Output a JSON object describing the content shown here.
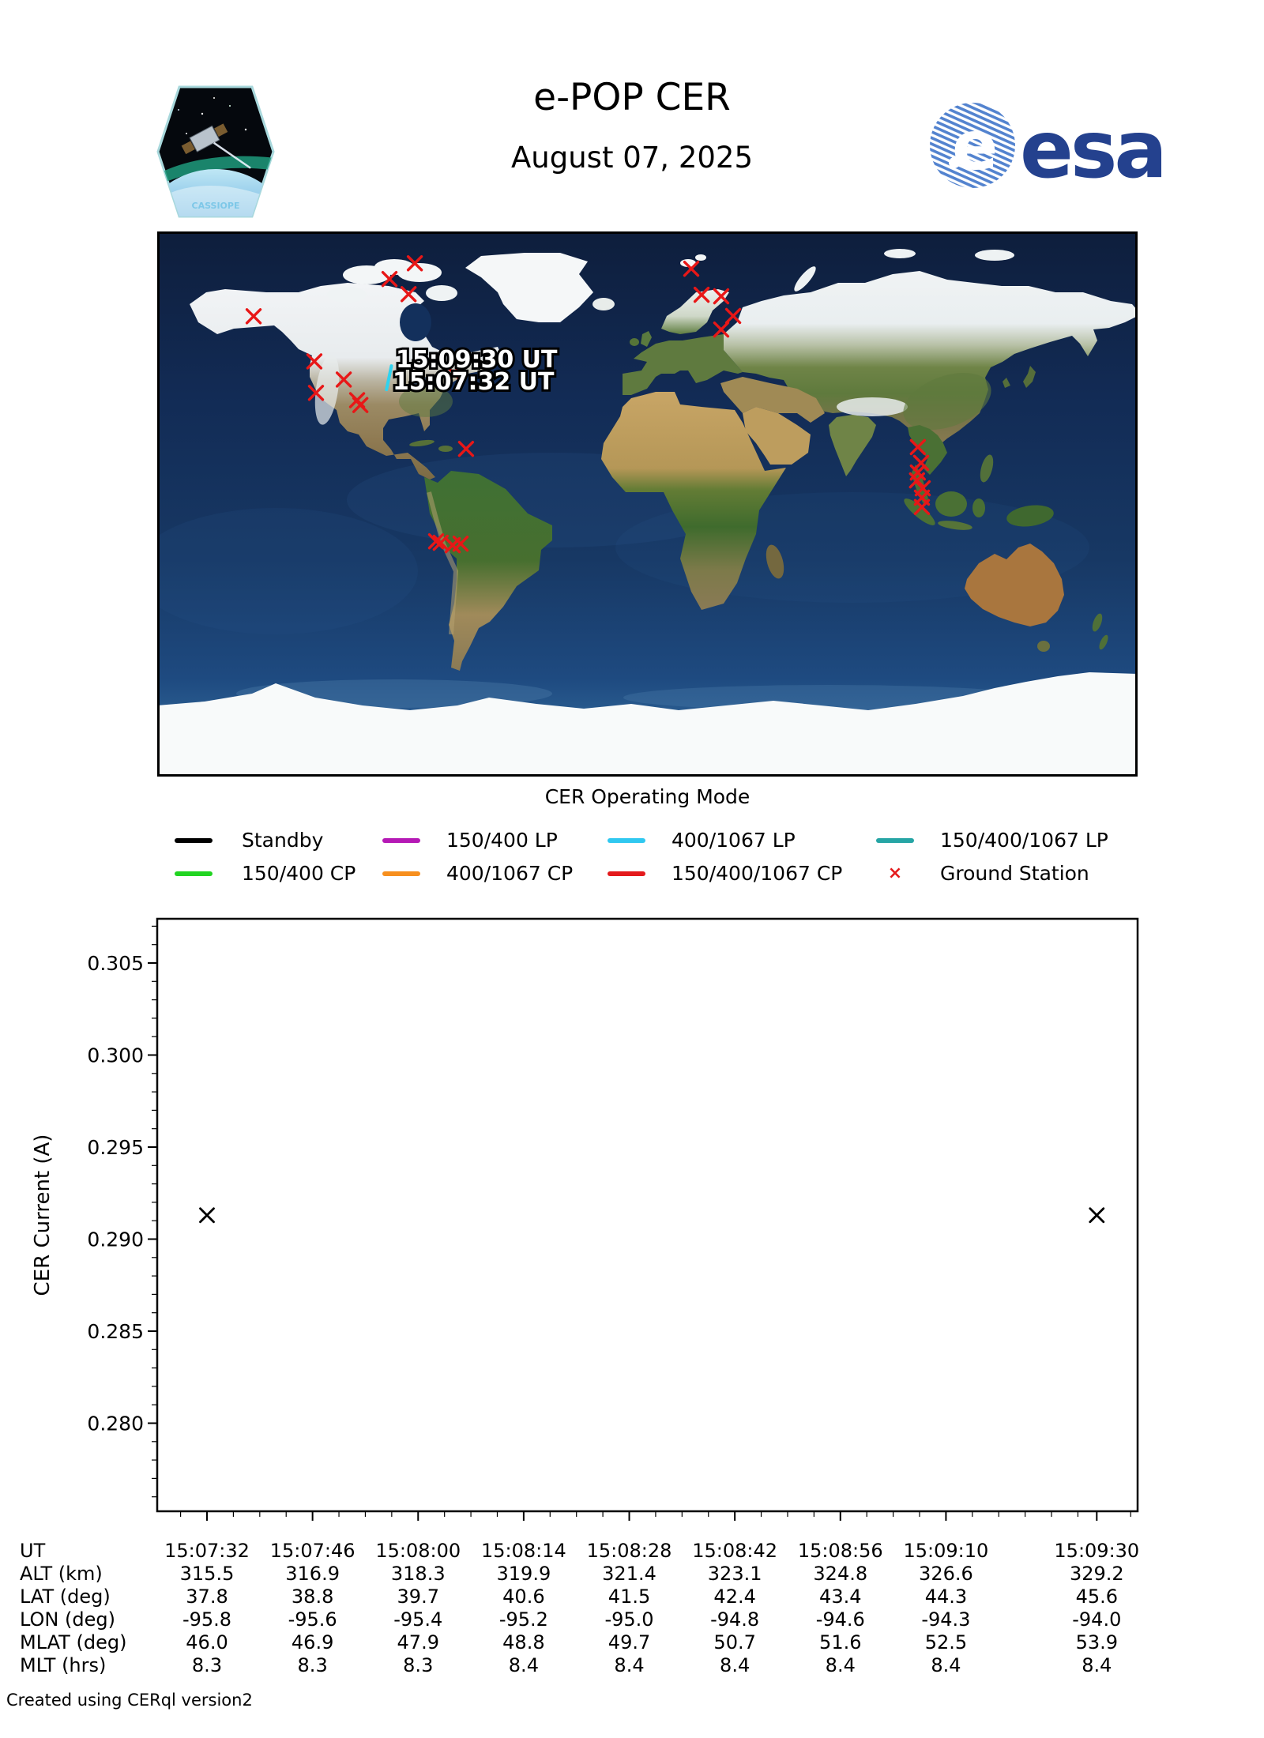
{
  "header": {
    "title": "e-POP CER",
    "date": "August 07, 2025",
    "mission_patch_text": "CASSIOPE",
    "esa_logo_text": "esa",
    "esa_blue": "#24418e"
  },
  "map": {
    "timestamp_end": "15:09:30 UT",
    "timestamp_start": "15:07:32 UT",
    "track": {
      "mode": "400/1067 LP",
      "color": "#2fd3f0",
      "start": {
        "lon": -95.8,
        "lat": 37.8
      },
      "end": {
        "lon": -94.0,
        "lat": 45.6
      }
    },
    "ground_station_color": "#e81717",
    "ground_stations": [
      {
        "lon": -85.4,
        "lat": 79.5
      },
      {
        "lon": -94.7,
        "lat": 74.3
      },
      {
        "lon": -87.7,
        "lat": 69.3
      },
      {
        "lon": -144.6,
        "lat": 62.0
      },
      {
        "lon": -122.3,
        "lat": 47.1
      },
      {
        "lon": -111.5,
        "lat": 41.1
      },
      {
        "lon": -121.7,
        "lat": 36.7
      },
      {
        "lon": -106.6,
        "lat": 34.3
      },
      {
        "lon": -105.4,
        "lat": 32.7
      },
      {
        "lon": -71.2,
        "lat": 43.3
      },
      {
        "lon": -66.6,
        "lat": 18.2
      },
      {
        "lon": -77.6,
        "lat": -12.3
      },
      {
        "lon": -75.9,
        "lat": -12.8
      },
      {
        "lon": -71.5,
        "lat": -13.6
      },
      {
        "lon": -68.6,
        "lat": -13.1
      },
      {
        "lon": 16.1,
        "lat": 77.7
      },
      {
        "lon": 19.9,
        "lat": 69.1
      },
      {
        "lon": 27.1,
        "lat": 68.6
      },
      {
        "lon": 31.5,
        "lat": 62.1
      },
      {
        "lon": 27.1,
        "lat": 57.6
      },
      {
        "lon": 99.3,
        "lat": 18.8
      },
      {
        "lon": 100.5,
        "lat": 13.6
      },
      {
        "lon": 99.3,
        "lat": 10.4
      },
      {
        "lon": 99.0,
        "lat": 7.8
      },
      {
        "lon": 101.1,
        "lat": 5.2
      },
      {
        "lon": 100.8,
        "lat": 2.1
      },
      {
        "lon": 100.8,
        "lat": -1.0
      }
    ]
  },
  "legend": {
    "title": "CER Operating Mode",
    "rows": [
      [
        {
          "label": "Standby",
          "color": "#000000",
          "type": "line"
        },
        {
          "label": "150/400 LP",
          "color": "#b519b5",
          "type": "line"
        },
        {
          "label": "400/1067 LP",
          "color": "#30c8f0",
          "type": "line"
        },
        {
          "label": "150/400/1067 LP",
          "color": "#26a5a5",
          "type": "line"
        }
      ],
      [
        {
          "label": "150/400 CP",
          "color": "#21d421",
          "type": "line"
        },
        {
          "label": "400/1067 CP",
          "color": "#f78f1e",
          "type": "line"
        },
        {
          "label": "150/400/1067 CP",
          "color": "#e41a1c",
          "type": "line"
        },
        {
          "label": "Ground Station",
          "color": "#e41a1c",
          "type": "marker",
          "marker": "×"
        }
      ]
    ]
  },
  "chart_data": {
    "type": "scatter",
    "title": "",
    "xlabel": "",
    "ylabel": "CER Current (A)",
    "grid": false,
    "ylim": [
      0.2755,
      0.3075
    ],
    "yticks": [
      0.305,
      0.3,
      0.295,
      0.29,
      0.285,
      0.28
    ],
    "ytick_labels": [
      "0.305",
      "0.300",
      "0.295",
      "0.290",
      "0.285",
      "0.280"
    ],
    "x_tick_labels": [
      "15:07:32",
      "15:07:46",
      "15:08:00",
      "15:08:14",
      "15:08:28",
      "15:08:42",
      "15:08:56",
      "15:09:10",
      "15:09:30"
    ],
    "points": [
      {
        "time": "15:07:32",
        "value": 0.2913
      },
      {
        "time": "15:09:30",
        "value": 0.2913
      }
    ],
    "marker": "x",
    "marker_color": "#000000"
  },
  "table": {
    "rows": [
      {
        "label": "UT",
        "values": [
          "15:07:32",
          "15:07:46",
          "15:08:00",
          "15:08:14",
          "15:08:28",
          "15:08:42",
          "15:08:56",
          "15:09:10",
          "15:09:30"
        ]
      },
      {
        "label": "ALT (km)",
        "values": [
          "315.5",
          "316.9",
          "318.3",
          "319.9",
          "321.4",
          "323.1",
          "324.8",
          "326.6",
          "329.2"
        ]
      },
      {
        "label": "LAT (deg)",
        "values": [
          "37.8",
          "38.8",
          "39.7",
          "40.6",
          "41.5",
          "42.4",
          "43.4",
          "44.3",
          "45.6"
        ]
      },
      {
        "label": "LON (deg)",
        "values": [
          "-95.8",
          "-95.6",
          "-95.4",
          "-95.2",
          "-95.0",
          "-94.8",
          "-94.6",
          "-94.3",
          "-94.0"
        ]
      },
      {
        "label": "MLAT (deg)",
        "values": [
          "46.0",
          "46.9",
          "47.9",
          "48.8",
          "49.7",
          "50.7",
          "51.6",
          "52.5",
          "53.9"
        ]
      },
      {
        "label": "MLT (hrs)",
        "values": [
          "8.3",
          "8.3",
          "8.3",
          "8.4",
          "8.4",
          "8.4",
          "8.4",
          "8.4",
          "8.4"
        ]
      }
    ]
  },
  "footer": {
    "credit": "Created using CERql version2"
  }
}
